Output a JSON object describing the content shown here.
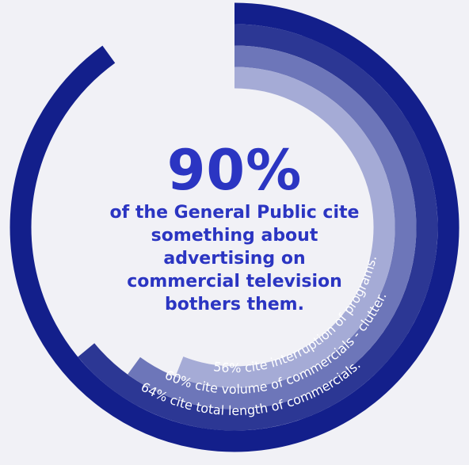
{
  "headline": "90%",
  "subtext": "of the General Public cite something about advertising on commercial television bothers them.",
  "chart_data": {
    "type": "radial-bar",
    "max": 100,
    "series": [
      {
        "value": 90,
        "label": "",
        "color": "#131f8b"
      },
      {
        "value": 64,
        "label": "64% cite total length of commercials.",
        "color": "#2c3794"
      },
      {
        "value": 60,
        "label": "60% cite volume of commercials - clutter.",
        "color": "#434ea3"
      },
      {
        "value": 56,
        "label": "56% cite interruption of programs.",
        "color": "#a5abd6"
      }
    ]
  },
  "colors": {
    "background": "#f1f1f6",
    "text_accent": "#2b35c2",
    "ring_interruption": "#a5abd6",
    "ring_volume": "#6d76b9"
  }
}
